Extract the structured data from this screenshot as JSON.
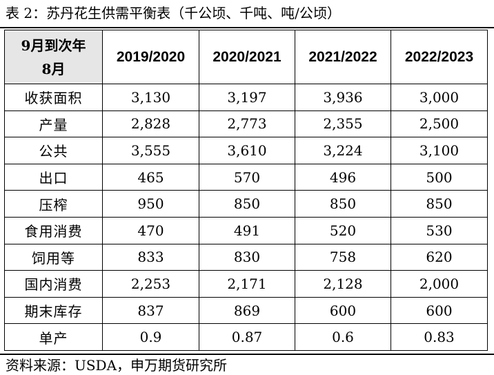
{
  "title": "表 2：苏丹花生供需平衡表（千公顷、千吨、吨/公顷）",
  "table": {
    "corner_line1": "9月到次年",
    "corner_line2": "8月",
    "columns": [
      "2019/2020",
      "2020/2021",
      "2021/2022",
      "2022/2023"
    ],
    "rows": [
      {
        "label": "收获面积",
        "values": [
          "3,130",
          "3,197",
          "3,936",
          "3,000"
        ]
      },
      {
        "label": "产量",
        "values": [
          "2,828",
          "2,773",
          "2,355",
          "2,500"
        ]
      },
      {
        "label": "公共",
        "values": [
          "3,555",
          "3,610",
          "3,224",
          "3,100"
        ]
      },
      {
        "label": "出口",
        "values": [
          "465",
          "570",
          "496",
          "500"
        ]
      },
      {
        "label": "压榨",
        "values": [
          "950",
          "850",
          "850",
          "850"
        ]
      },
      {
        "label": "食用消费",
        "values": [
          "470",
          "491",
          "520",
          "530"
        ]
      },
      {
        "label": "饲用等",
        "values": [
          "833",
          "830",
          "758",
          "620"
        ]
      },
      {
        "label": "国内消费",
        "values": [
          "2,253",
          "2,171",
          "2,128",
          "2,000"
        ]
      },
      {
        "label": "期末库存",
        "values": [
          "837",
          "869",
          "600",
          "600"
        ]
      },
      {
        "label": "单产",
        "values": [
          "0.9",
          "0.87",
          "0.6",
          "0.83"
        ]
      }
    ]
  },
  "source": "资料来源：USDA，申万期货研究所",
  "colors": {
    "header_fill": "#e7e6e6",
    "border": "#000000"
  }
}
